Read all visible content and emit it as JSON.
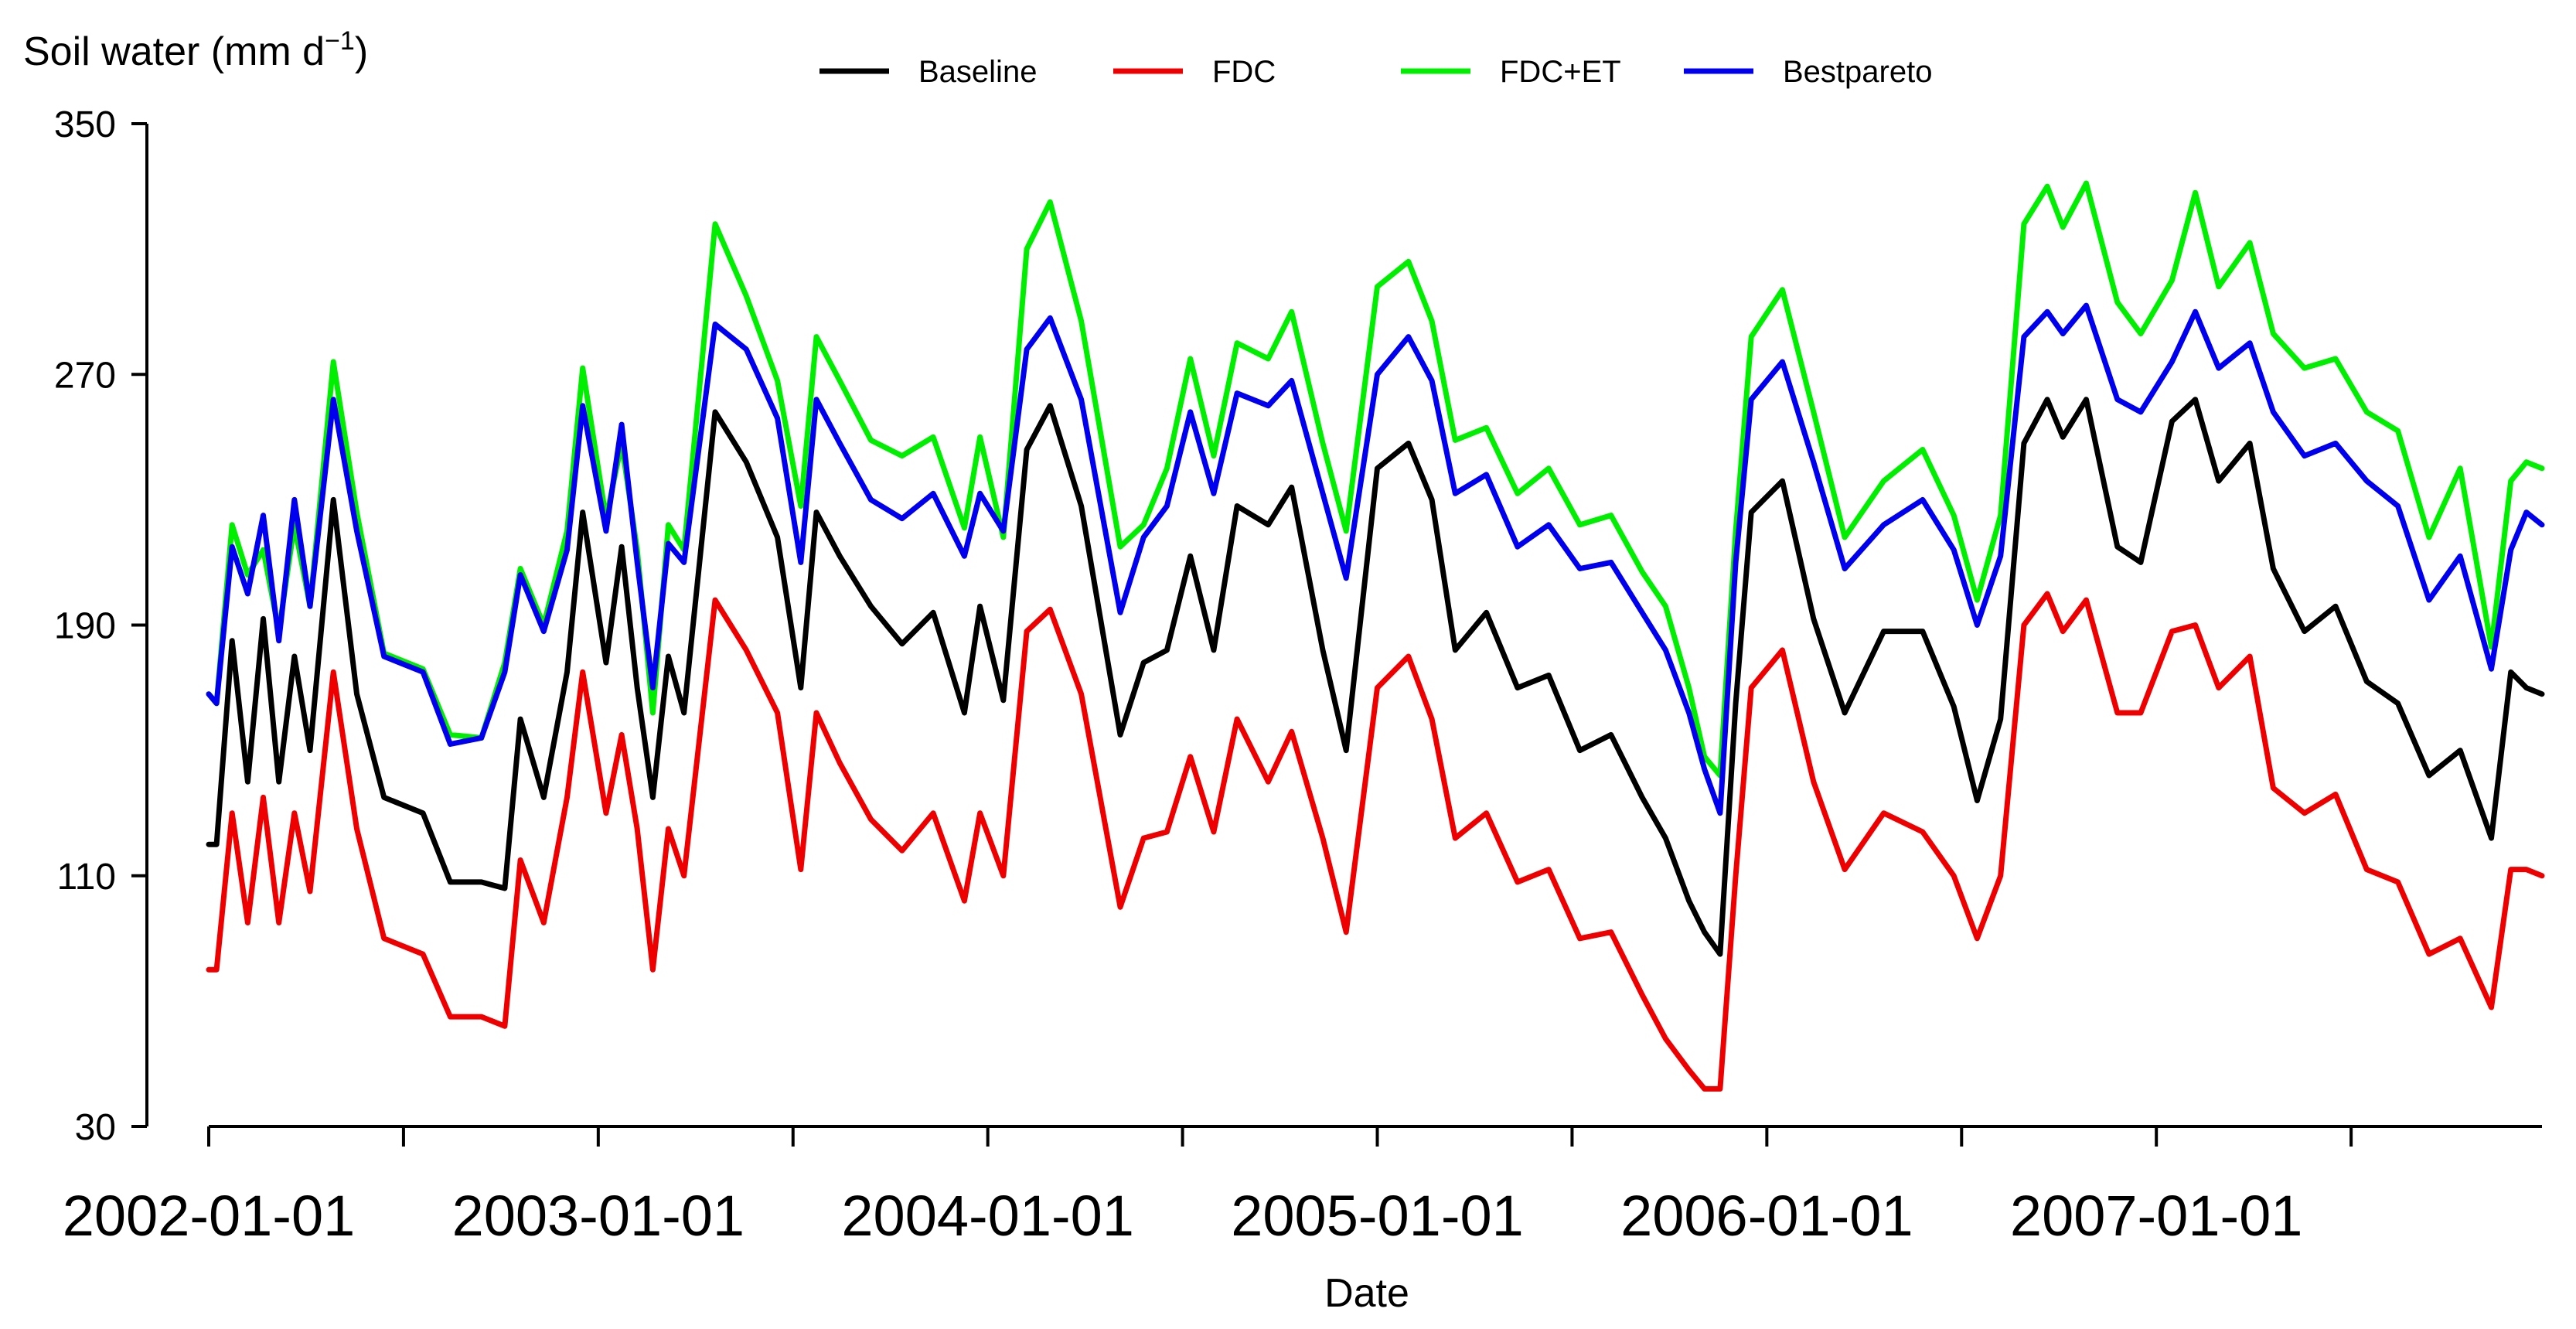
{
  "chart_data": {
    "type": "line",
    "title": "",
    "ylabel": "Soil water (mm d",
    "ylabel_sup": "−1",
    "ylabel_close": ")",
    "xlabel": "Date",
    "ylim": [
      30,
      350
    ],
    "yticks": [
      30,
      110,
      190,
      270,
      350
    ],
    "xrange_years": [
      2002.0,
      2007.99
    ],
    "xticks_years": [
      2002.0,
      2002.5,
      2003.0,
      2003.5,
      2004.0,
      2004.5,
      2005.0,
      2005.5,
      2006.0,
      2006.5,
      2007.0,
      2007.5
    ],
    "xtick_labels": [
      {
        "year": 2002.0,
        "label": "2002-01-01"
      },
      {
        "year": 2003.0,
        "label": "2003-01-01"
      },
      {
        "year": 2004.0,
        "label": "2004-01-01"
      },
      {
        "year": 2005.0,
        "label": "2005-01-01"
      },
      {
        "year": 2006.0,
        "label": "2006-01-01"
      },
      {
        "year": 2007.0,
        "label": "2007-01-01"
      }
    ],
    "legend": {
      "placement": "top"
    },
    "x": [
      2002.0,
      2002.02,
      2002.06,
      2002.1,
      2002.14,
      2002.18,
      2002.22,
      2002.26,
      2002.32,
      2002.38,
      2002.45,
      2002.55,
      2002.62,
      2002.7,
      2002.76,
      2002.8,
      2002.86,
      2002.92,
      2002.96,
      2003.02,
      2003.06,
      2003.1,
      2003.14,
      2003.18,
      2003.22,
      2003.3,
      2003.38,
      2003.46,
      2003.52,
      2003.56,
      2003.62,
      2003.7,
      2003.78,
      2003.86,
      2003.94,
      2003.98,
      2004.04,
      2004.1,
      2004.16,
      2004.24,
      2004.34,
      2004.4,
      2004.46,
      2004.52,
      2004.58,
      2004.64,
      2004.72,
      2004.78,
      2004.86,
      2004.92,
      2005.0,
      2005.08,
      2005.14,
      2005.2,
      2005.28,
      2005.36,
      2005.44,
      2005.52,
      2005.6,
      2005.68,
      2005.74,
      2005.8,
      2005.84,
      2005.88,
      2005.92,
      2005.96,
      2006.04,
      2006.12,
      2006.2,
      2006.3,
      2006.4,
      2006.48,
      2006.54,
      2006.6,
      2006.66,
      2006.72,
      2006.76,
      2006.82,
      2006.9,
      2006.96,
      2007.04,
      2007.1,
      2007.16,
      2007.24,
      2007.3,
      2007.38,
      2007.46,
      2007.54,
      2007.62,
      2007.7,
      2007.78,
      2007.86,
      2007.91,
      2007.95,
      2007.99
    ],
    "series": [
      {
        "name": "FDC+ET",
        "color": "#00ee00",
        "values": [
          168,
          165,
          222,
          206,
          214,
          188,
          222,
          196,
          274,
          226,
          181,
          176,
          155,
          154,
          178,
          208,
          190,
          220,
          272,
          224,
          248,
          214,
          162,
          222,
          214,
          318,
          295,
          268,
          228,
          282,
          268,
          249,
          244,
          250,
          221,
          250,
          218,
          310,
          325,
          287,
          215,
          222,
          240,
          275,
          244,
          280,
          275,
          290,
          248,
          220,
          298,
          306,
          287,
          249,
          253,
          232,
          240,
          222,
          225,
          207,
          196,
          170,
          148,
          142,
          220,
          282,
          297,
          258,
          218,
          236,
          246,
          225,
          198,
          225,
          318,
          330,
          317,
          331,
          293,
          283,
          300,
          328,
          298,
          312,
          283,
          272,
          275,
          258,
          252,
          218,
          240,
          183,
          236,
          242,
          240
        ]
      },
      {
        "name": "Bestpareto",
        "color": "#0000ee",
        "values": [
          168,
          165,
          215,
          200,
          225,
          185,
          230,
          196,
          262,
          220,
          180,
          175,
          152,
          154,
          175,
          206,
          188,
          214,
          260,
          220,
          254,
          210,
          170,
          216,
          210,
          286,
          278,
          256,
          210,
          262,
          248,
          230,
          224,
          232,
          212,
          232,
          220,
          278,
          288,
          262,
          194,
          218,
          228,
          258,
          232,
          264,
          260,
          268,
          232,
          205,
          270,
          282,
          268,
          232,
          238,
          215,
          222,
          208,
          210,
          194,
          182,
          162,
          144,
          130,
          210,
          262,
          274,
          242,
          208,
          222,
          230,
          214,
          190,
          212,
          282,
          290,
          283,
          292,
          262,
          258,
          274,
          290,
          272,
          280,
          258,
          244,
          248,
          236,
          228,
          198,
          212,
          176,
          214,
          226,
          222
        ]
      },
      {
        "name": "Baseline",
        "color": "#000000",
        "values": [
          120,
          120,
          185,
          140,
          192,
          140,
          180,
          150,
          230,
          168,
          135,
          130,
          108,
          108,
          106,
          160,
          135,
          175,
          226,
          178,
          215,
          170,
          135,
          180,
          162,
          258,
          242,
          218,
          170,
          226,
          212,
          196,
          184,
          194,
          162,
          196,
          166,
          246,
          260,
          228,
          155,
          178,
          182,
          212,
          182,
          228,
          222,
          234,
          182,
          150,
          240,
          248,
          230,
          182,
          194,
          170,
          174,
          150,
          155,
          135,
          122,
          102,
          92,
          85,
          165,
          226,
          236,
          192,
          162,
          188,
          188,
          164,
          134,
          160,
          248,
          262,
          250,
          262,
          215,
          210,
          255,
          262,
          236,
          248,
          208,
          188,
          196,
          172,
          165,
          142,
          150,
          122,
          175,
          170,
          168
        ]
      },
      {
        "name": "FDC",
        "color": "#ee0000",
        "values": [
          80,
          80,
          130,
          95,
          135,
          95,
          130,
          105,
          175,
          125,
          90,
          85,
          65,
          65,
          62,
          115,
          95,
          135,
          175,
          130,
          155,
          125,
          80,
          125,
          110,
          198,
          182,
          162,
          112,
          162,
          146,
          128,
          118,
          130,
          102,
          130,
          110,
          188,
          195,
          168,
          100,
          122,
          124,
          148,
          124,
          160,
          140,
          156,
          122,
          92,
          170,
          180,
          160,
          122,
          130,
          108,
          112,
          90,
          92,
          72,
          58,
          48,
          42,
          42,
          110,
          170,
          182,
          140,
          112,
          130,
          124,
          110,
          90,
          110,
          190,
          200,
          188,
          198,
          162,
          162,
          188,
          190,
          170,
          180,
          138,
          130,
          136,
          112,
          108,
          85,
          90,
          68,
          112,
          112,
          110
        ]
      }
    ]
  }
}
